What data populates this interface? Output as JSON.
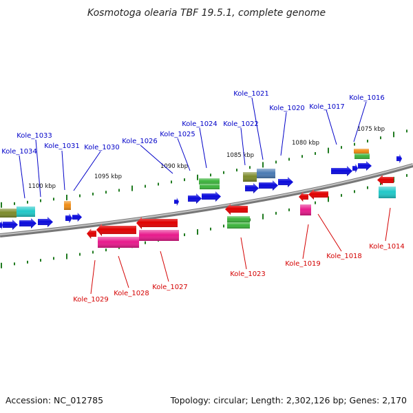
{
  "title": "Kosmotoga olearia TBF 19.5.1, complete genome",
  "footer": {
    "accession": "Accession: NC_012785",
    "summary": "Topology: circular; Length: 2,302,126 bp; Genes: 2,170"
  },
  "colors": {
    "backbone": "#8a8a8a",
    "tick": "#1f7a1f",
    "forward_label": "#0000c8",
    "reverse_label": "#d40000",
    "blue": "#0a0adc",
    "red": "#e00000",
    "green": "#3cb43c",
    "olive": "#7c8a2a",
    "cyan": "#20c8c8",
    "steel": "#4a7ab4",
    "orange": "#f08c14",
    "magenta": "#e81a8c"
  },
  "scale_labels": [
    "1075 kbp",
    "1080 kbp",
    "1085 kbp",
    "1090 kbp",
    "1095 kbp",
    "1100 kbp"
  ],
  "forward_genes": [
    "Kole_1016",
    "Kole_1017",
    "Kole_1020",
    "Kole_1021",
    "Kole_1022",
    "Kole_1024",
    "Kole_1025",
    "Kole_1026",
    "Kole_1030",
    "Kole_1031",
    "Kole_1033",
    "Kole_1034"
  ],
  "reverse_genes": [
    "Kole_1014",
    "Kole_1018",
    "Kole_1019",
    "Kole_1023",
    "Kole_1027",
    "Kole_1028",
    "Kole_1029"
  ]
}
